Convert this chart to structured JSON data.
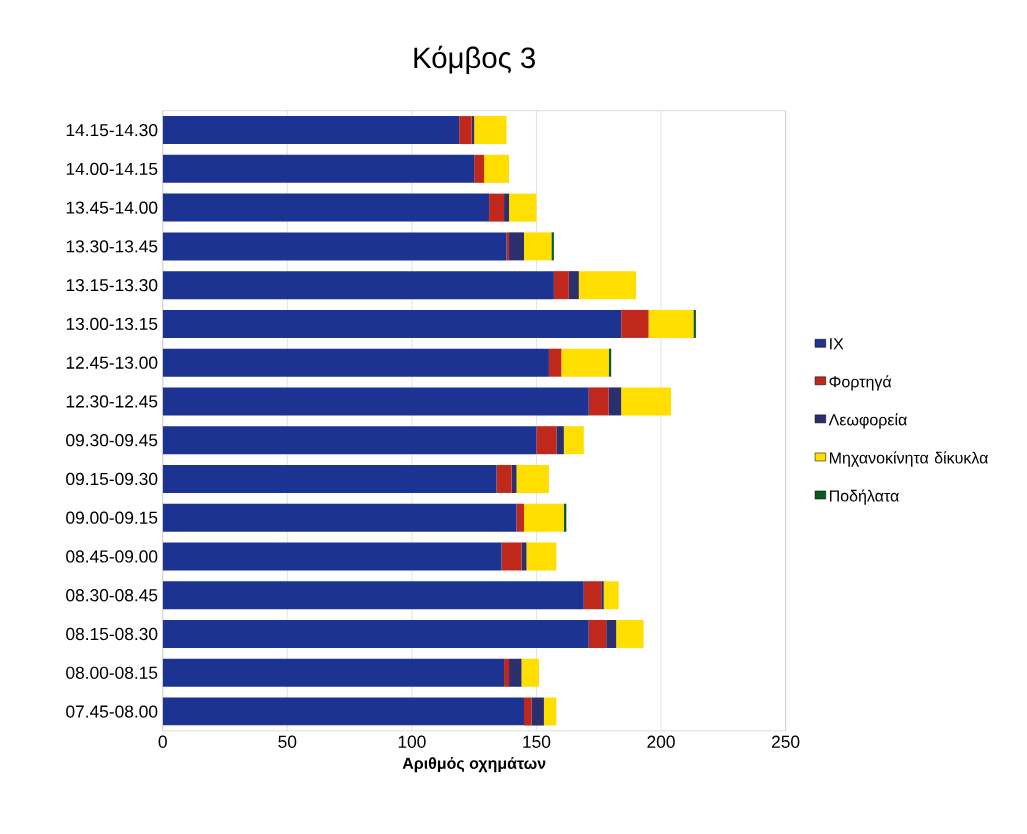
{
  "chart_data": {
    "type": "bar",
    "orientation": "horizontal",
    "stacked": true,
    "title": "Κόμβος 3",
    "xlabel": "Αριθμός οχημάτων",
    "categories": [
      "14.15-14.30",
      "14.00-14.15",
      "13.45-14.00",
      "13.30-13.45",
      "13.15-13.30",
      "13.00-13.15",
      "12.45-13.00",
      "12.30-12.45",
      "09.30-09.45",
      "09.15-09.30",
      "09.00-09.15",
      "08.45-09.00",
      "08.30-08.45",
      "08.15-08.30",
      "08.00-08.15",
      "07.45-08.00"
    ],
    "series": [
      {
        "name": "ΙΧ",
        "color": "#1c3391",
        "values": [
          119,
          125,
          131,
          138,
          157,
          184,
          155,
          171,
          150,
          134,
          142,
          136,
          169,
          171,
          137,
          145
        ]
      },
      {
        "name": "Φορτηγά",
        "color": "#c0281c",
        "values": [
          5,
          4,
          6,
          1,
          6,
          11,
          5,
          8,
          8,
          6,
          3,
          8,
          7,
          7,
          2,
          3
        ]
      },
      {
        "name": "Λεωφορεία",
        "color": "#2b2f6e",
        "values": [
          1,
          0,
          2,
          6,
          4,
          0,
          0,
          5,
          3,
          2,
          0,
          2,
          1,
          4,
          5,
          5
        ]
      },
      {
        "name": "Μηχανοκίνητα δίκυκλα",
        "color": "#ffde00",
        "values": [
          13,
          10,
          11,
          11,
          23,
          18,
          19,
          20,
          8,
          13,
          16,
          12,
          6,
          11,
          7,
          5
        ]
      },
      {
        "name": "Ποδήλατα",
        "color": "#0b5a20",
        "values": [
          0,
          0,
          0,
          1,
          0,
          1,
          1,
          0,
          0,
          0,
          1,
          0,
          0,
          0,
          0,
          0
        ]
      }
    ],
    "xlim": [
      0,
      250
    ],
    "xticks": [
      0,
      50,
      100,
      150,
      200,
      250
    ],
    "grid": "x",
    "legend": "right"
  }
}
